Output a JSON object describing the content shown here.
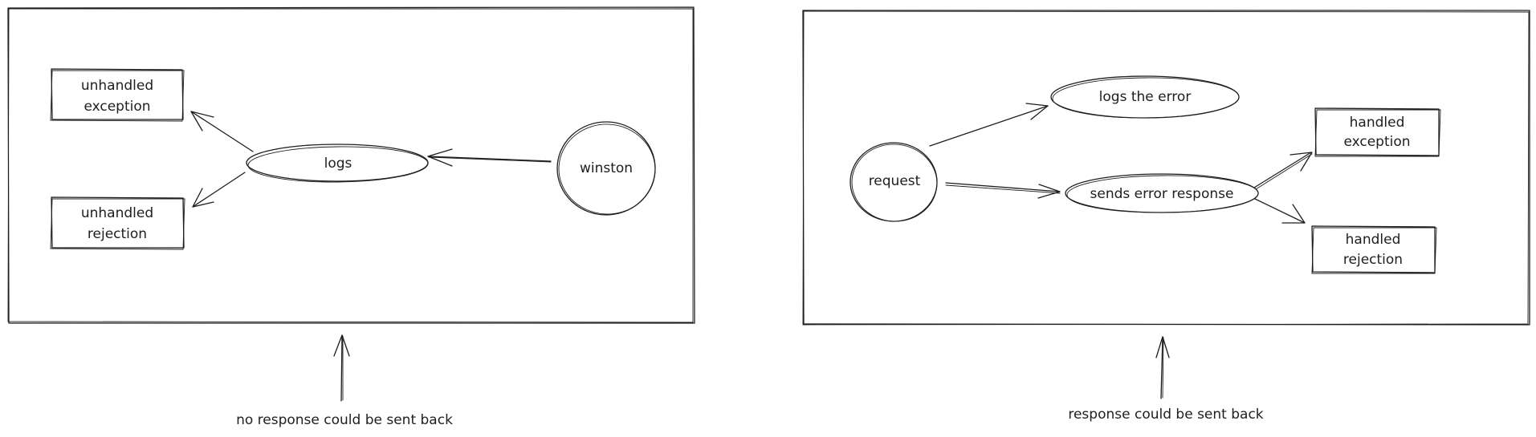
{
  "left_diagram": {
    "nodes": {
      "unhandled_exception": [
        "unhandled",
        "exception"
      ],
      "unhandled_rejection": [
        "unhandled",
        "rejection"
      ],
      "logs": "logs",
      "winston": "winston"
    },
    "caption": "no response could be sent back"
  },
  "right_diagram": {
    "nodes": {
      "request": "request",
      "logs_the_error": "logs the error",
      "sends_error_response": "sends error response",
      "handled_exception": [
        "handled",
        "exception"
      ],
      "handled_rejection": [
        "handled",
        "rejection"
      ]
    },
    "caption": "response could be sent back"
  },
  "colors": {
    "stroke": "#1e1e1e",
    "background": "#ffffff"
  }
}
